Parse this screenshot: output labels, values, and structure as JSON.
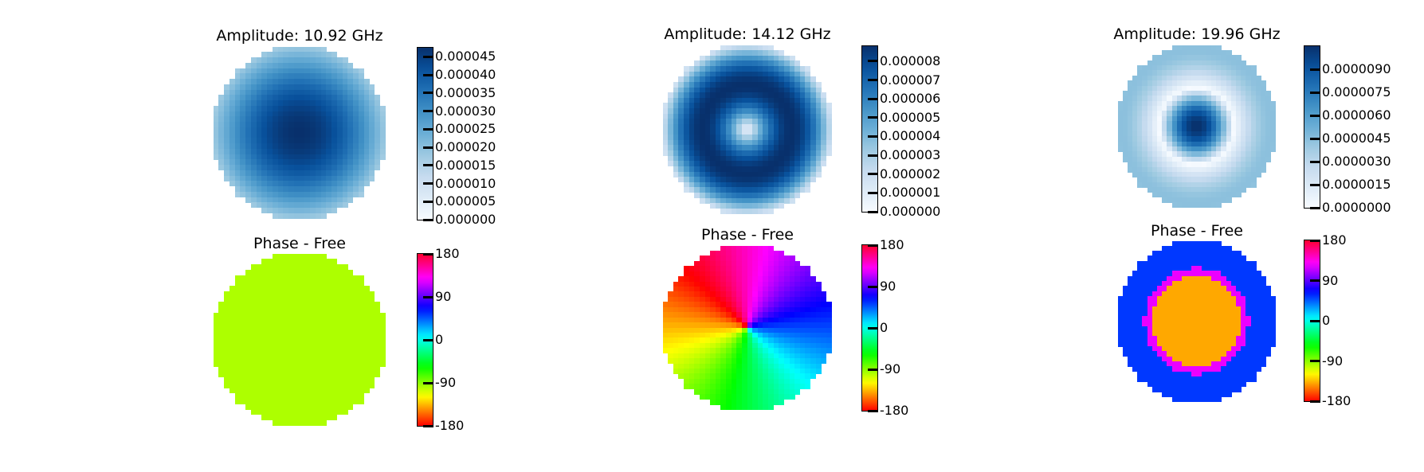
{
  "chart_data": [
    {
      "type": "heatmap",
      "title": "Amplitude: 10.92 GHz",
      "colormap": "Blues",
      "mode": "fundamental",
      "colorbar": {
        "ticks": [
          "0.000045",
          "0.000040",
          "0.000035",
          "0.000030",
          "0.000025",
          "0.000020",
          "0.000015",
          "0.000010",
          "0.000005",
          "0.000000"
        ],
        "range": [
          0,
          4.75e-05
        ]
      }
    },
    {
      "type": "heatmap",
      "title": "Amplitude: 14.12 GHz",
      "colormap": "Blues",
      "mode": "vortex",
      "colorbar": {
        "ticks": [
          "0.000008",
          "0.000007",
          "0.000006",
          "0.000005",
          "0.000004",
          "0.000003",
          "0.000002",
          "0.000001",
          "0.000000"
        ],
        "range": [
          0,
          8.8e-06
        ]
      }
    },
    {
      "type": "heatmap",
      "title": "Amplitude: 19.96 GHz",
      "colormap": "Blues",
      "mode": "ring",
      "colorbar": {
        "ticks": [
          "0.0000090",
          "0.0000075",
          "0.0000060",
          "0.0000045",
          "0.0000030",
          "0.0000015",
          "0.0000000"
        ],
        "range": [
          0,
          1.05e-05
        ]
      }
    },
    {
      "type": "heatmap",
      "title": "Phase - Free",
      "colormap": "hsv",
      "mode": "uniform",
      "colorbar": {
        "ticks": [
          "180",
          "90",
          "0",
          "-90",
          "-180"
        ],
        "range": [
          -180,
          180
        ]
      }
    },
    {
      "type": "heatmap",
      "title": "Phase - Free",
      "colormap": "hsv",
      "mode": "azimuthal",
      "colorbar": {
        "ticks": [
          "180",
          "90",
          "0",
          "-90",
          "-180"
        ],
        "range": [
          -180,
          180
        ]
      }
    },
    {
      "type": "heatmap",
      "title": "Phase - Free",
      "colormap": "hsv",
      "mode": "core-ring",
      "colorbar": {
        "ticks": [
          "180",
          "90",
          "0",
          "-90",
          "-180"
        ],
        "range": [
          -180,
          180
        ]
      }
    }
  ]
}
